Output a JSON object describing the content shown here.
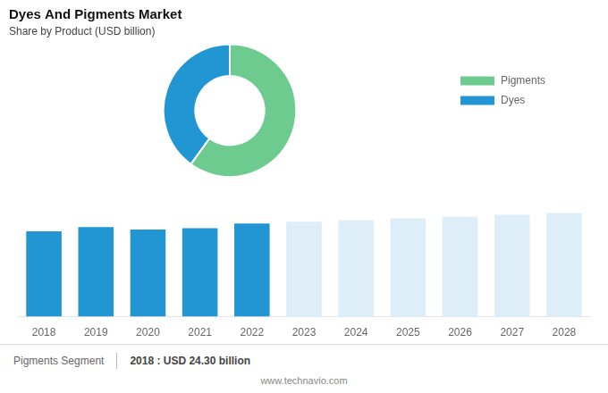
{
  "chart_data": [
    {
      "type": "doughnut",
      "title": "Dyes And Pigments Market",
      "subtitle": "Share by Product (USD billion)",
      "categories": [
        "Pigments",
        "Dyes"
      ],
      "values": [
        60,
        40
      ],
      "colors": [
        "#6dcb90",
        "#2196d3"
      ],
      "legend": "right"
    },
    {
      "type": "bar",
      "categories": [
        2018,
        2019,
        2020,
        2021,
        2022,
        2023,
        2024,
        2025,
        2026,
        2027,
        2028
      ],
      "values": [
        24.3,
        25.5,
        24.8,
        25.2,
        26.5,
        27.0,
        27.5,
        28.0,
        28.5,
        29.0,
        29.5
      ],
      "colors": [
        "#2196d3",
        "#2196d3",
        "#2196d3",
        "#2196d3",
        "#2196d3",
        "#ddeef8",
        "#ddeef8",
        "#ddeef8",
        "#ddeef8",
        "#ddeef8",
        "#ddeef8"
      ],
      "ylim": [
        0,
        35.99
      ],
      "tick_labels": "x",
      "grid": false,
      "annotations": [
        "Pigments Segment",
        "2018 : USD 24.30 billion",
        "www.technavio.com"
      ]
    }
  ]
}
